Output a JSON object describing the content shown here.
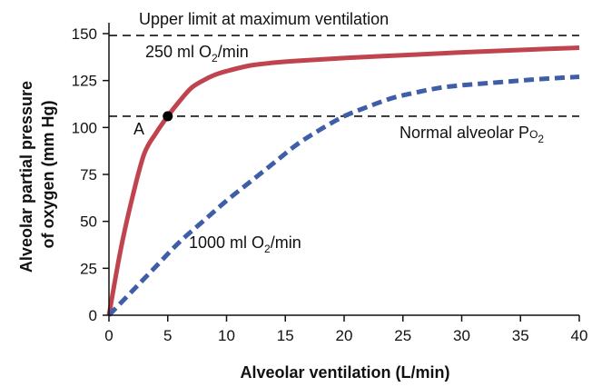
{
  "chart_data": {
    "type": "line",
    "xlabel": "Alveolar ventilation (L/min)",
    "ylabel_line1": "Alveolar partial pressure",
    "ylabel_line2": "of oxygen (mm Hg)",
    "xlim": [
      0,
      40
    ],
    "ylim": [
      0,
      150
    ],
    "x_ticks": [
      0,
      5,
      10,
      15,
      20,
      25,
      30,
      35,
      40
    ],
    "y_ticks": [
      0,
      25,
      50,
      75,
      100,
      125,
      150
    ],
    "grid": false,
    "reference_lines": [
      {
        "label": "Upper limit at maximum ventilation",
        "y": 149,
        "style": "dashed"
      },
      {
        "label_main": "Normal alveolar P",
        "label_sub": "O",
        "label_tail": "2",
        "y": 106,
        "style": "dashed"
      }
    ],
    "series": [
      {
        "name_main": "250 ml O",
        "name_sub": "2",
        "name_tail": "/min",
        "style": "solid",
        "color": "#c0444e",
        "points": [
          [
            0,
            0
          ],
          [
            1,
            35
          ],
          [
            2,
            63
          ],
          [
            3,
            86
          ],
          [
            4,
            97
          ],
          [
            5,
            106
          ],
          [
            6,
            114
          ],
          [
            7,
            121
          ],
          [
            8,
            125
          ],
          [
            9,
            128
          ],
          [
            10,
            130
          ],
          [
            12,
            133
          ],
          [
            14,
            134.5
          ],
          [
            16,
            135.5
          ],
          [
            20,
            137
          ],
          [
            25,
            138.5
          ],
          [
            30,
            140
          ],
          [
            35,
            141.3
          ],
          [
            40,
            142.5
          ]
        ]
      },
      {
        "name_main": "1000 ml O",
        "name_sub": "2",
        "name_tail": "/min",
        "style": "dashed",
        "color": "#3f5ea8",
        "points": [
          [
            0,
            0
          ],
          [
            2,
            13
          ],
          [
            4,
            26
          ],
          [
            6,
            39
          ],
          [
            8,
            50
          ],
          [
            10,
            61
          ],
          [
            12,
            71
          ],
          [
            14,
            81
          ],
          [
            16,
            91
          ],
          [
            18,
            99
          ],
          [
            20,
            106
          ],
          [
            22,
            111
          ],
          [
            24,
            115.5
          ],
          [
            26,
            118.5
          ],
          [
            28,
            121
          ],
          [
            30,
            122.5
          ],
          [
            32,
            123.5
          ],
          [
            34,
            124.5
          ],
          [
            36,
            125.5
          ],
          [
            38,
            126.3
          ],
          [
            40,
            127
          ]
        ]
      }
    ],
    "point_marker": {
      "label": "A",
      "x": 5,
      "y": 106
    }
  }
}
